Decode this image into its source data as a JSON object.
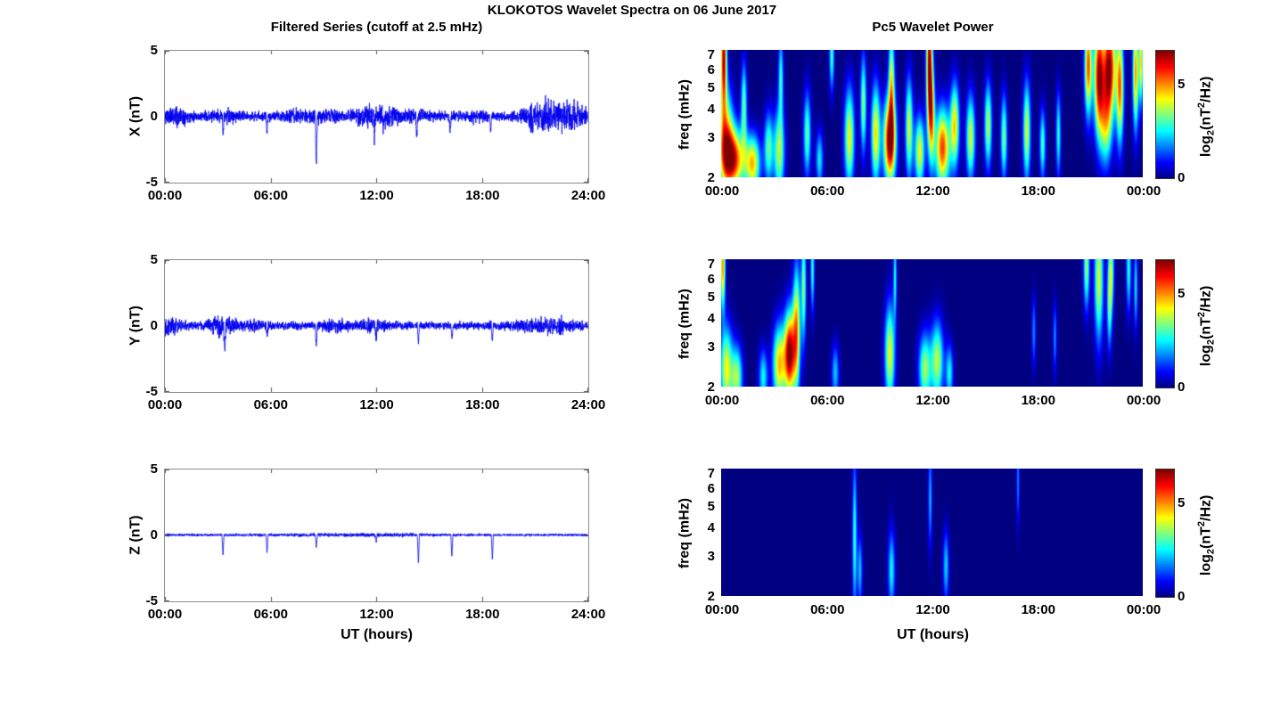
{
  "figure": {
    "title": "KLOKOTOS Wavelet Spectra on 06 June 2017",
    "left_subtitle": "Filtered Series (cutoff at 2.5 mHz)",
    "right_subtitle": "Pc5 Wavelet Power",
    "xlabel": "UT (hours)",
    "colorbar_label": {
      "base": "log",
      "sub": "2",
      "open": "(nT",
      "sup": "2",
      "close": "/Hz)"
    }
  },
  "chart_data": [
    {
      "id": "x-filtered",
      "type": "line",
      "panel": "left",
      "row": 0,
      "ylabel": "X (nT)",
      "ylim": [
        -5,
        5
      ],
      "yticks": [
        5,
        0,
        -5
      ],
      "xlim_hours": [
        0,
        24
      ],
      "xtick_labels": [
        "00:00",
        "06:00",
        "12:00",
        "18:00",
        "24:00"
      ],
      "line_color": "#0000ee",
      "seed": 11,
      "show_xlabel": false,
      "noise": {
        "base": 0.35,
        "bursts": [
          {
            "t": 0.5,
            "w": 0.5,
            "amp": 0.5
          },
          {
            "t": 3.5,
            "w": 0.5,
            "amp": 0.2
          },
          {
            "t": 7.5,
            "w": 0.5,
            "amp": 0.2
          },
          {
            "t": 9.0,
            "w": 0.6,
            "amp": 0.25
          },
          {
            "t": 11.6,
            "w": 0.8,
            "amp": 0.45
          },
          {
            "t": 12.7,
            "w": 0.5,
            "amp": 0.3
          },
          {
            "t": 14.5,
            "w": 0.6,
            "amp": 0.2
          },
          {
            "t": 17.5,
            "w": 0.5,
            "amp": 0.15
          },
          {
            "t": 21.1,
            "w": 0.5,
            "amp": 0.55
          },
          {
            "t": 22.3,
            "w": 0.9,
            "amp": 0.75
          },
          {
            "t": 23.3,
            "w": 0.4,
            "amp": 0.4
          }
        ]
      },
      "spikes": [
        {
          "t": 3.3,
          "v": -1.3
        },
        {
          "t": 5.8,
          "v": -1.4
        },
        {
          "t": 8.6,
          "v": -3.7
        },
        {
          "t": 11.9,
          "v": -1.7
        },
        {
          "t": 12.4,
          "v": -0.9
        },
        {
          "t": 14.3,
          "v": -1.5
        },
        {
          "t": 16.2,
          "v": -1.3
        },
        {
          "t": 18.5,
          "v": -1.2
        },
        {
          "t": 20.9,
          "v": -0.9
        }
      ]
    },
    {
      "id": "x-wavelet",
      "type": "heatmap",
      "panel": "right",
      "row": 0,
      "ylabel": "freq (mHz)",
      "f_range_mHz": [
        2,
        7.3
      ],
      "yticks": [
        7,
        6,
        5,
        4,
        3,
        2
      ],
      "xtick_labels": [
        "00:00",
        "06:00",
        "12:00",
        "18:00",
        "00:00"
      ],
      "colormap": "jet",
      "cmax": 6.8,
      "colorbar_ticks": [
        0,
        5
      ],
      "show_xlabel": false,
      "blob_format": [
        "t_hours",
        "f_mHz",
        "sigma_t_hours",
        "sigma_logf",
        "amplitude"
      ],
      "blobs": [
        [
          0.15,
          6.8,
          0.12,
          0.35,
          6.5
        ],
        [
          0.25,
          3.0,
          0.3,
          0.35,
          4.5
        ],
        [
          0.7,
          2.4,
          0.45,
          0.22,
          5.8
        ],
        [
          1.8,
          2.3,
          0.3,
          0.2,
          4.5
        ],
        [
          1.3,
          4.2,
          0.12,
          0.3,
          3.2
        ],
        [
          2.7,
          2.7,
          0.18,
          0.25,
          3.2
        ],
        [
          3.3,
          2.6,
          0.22,
          0.3,
          3.8
        ],
        [
          3.4,
          5.5,
          0.1,
          0.3,
          2.8
        ],
        [
          4.9,
          3.1,
          0.15,
          0.3,
          3.2
        ],
        [
          5.6,
          2.4,
          0.15,
          0.2,
          2.5
        ],
        [
          6.3,
          6.9,
          0.1,
          0.25,
          3.0
        ],
        [
          7.3,
          3.0,
          0.2,
          0.35,
          4.2
        ],
        [
          8.1,
          4.2,
          0.12,
          0.35,
          3.5
        ],
        [
          8.8,
          3.1,
          0.18,
          0.35,
          4.5
        ],
        [
          9.6,
          2.9,
          0.25,
          0.3,
          6.8
        ],
        [
          9.7,
          5.2,
          0.12,
          0.4,
          4.0
        ],
        [
          10.7,
          3.3,
          0.15,
          0.35,
          4.0
        ],
        [
          11.3,
          2.6,
          0.2,
          0.25,
          4.2
        ],
        [
          11.85,
          6.3,
          0.12,
          0.5,
          6.6
        ],
        [
          12.0,
          3.8,
          0.12,
          0.35,
          4.0
        ],
        [
          12.6,
          2.7,
          0.3,
          0.28,
          5.6
        ],
        [
          13.3,
          3.4,
          0.18,
          0.3,
          4.4
        ],
        [
          14.2,
          3.0,
          0.18,
          0.3,
          4.0
        ],
        [
          15.2,
          3.4,
          0.15,
          0.3,
          3.8
        ],
        [
          16.1,
          3.0,
          0.13,
          0.3,
          3.4
        ],
        [
          17.4,
          3.2,
          0.15,
          0.35,
          4.0
        ],
        [
          18.3,
          2.8,
          0.12,
          0.25,
          3.0
        ],
        [
          19.2,
          3.1,
          0.1,
          0.3,
          2.8
        ],
        [
          20.9,
          6.2,
          0.15,
          0.35,
          5.5
        ],
        [
          21.5,
          5.6,
          0.2,
          0.4,
          6.4
        ],
        [
          22.1,
          6.2,
          0.25,
          0.35,
          6.7
        ],
        [
          22.7,
          5.0,
          0.15,
          0.4,
          5.2
        ],
        [
          21.9,
          3.4,
          0.25,
          0.3,
          3.4
        ],
        [
          23.6,
          5.8,
          0.12,
          0.4,
          5.0
        ],
        [
          23.9,
          6.5,
          0.08,
          0.3,
          4.5
        ]
      ]
    },
    {
      "id": "y-filtered",
      "type": "line",
      "panel": "left",
      "row": 1,
      "ylabel": "Y (nT)",
      "ylim": [
        -5,
        5
      ],
      "yticks": [
        5,
        0,
        -5
      ],
      "xlim_hours": [
        0,
        24
      ],
      "xtick_labels": [
        "00:00",
        "06:00",
        "12:00",
        "18:00",
        "24:00"
      ],
      "line_color": "#0000ee",
      "seed": 22,
      "show_xlabel": false,
      "noise": {
        "base": 0.3,
        "bursts": [
          {
            "t": 0.3,
            "w": 0.4,
            "amp": 0.45
          },
          {
            "t": 3.3,
            "w": 0.5,
            "amp": 0.5
          },
          {
            "t": 5.0,
            "w": 0.4,
            "amp": 0.15
          },
          {
            "t": 9.6,
            "w": 0.5,
            "amp": 0.25
          },
          {
            "t": 11.8,
            "w": 0.6,
            "amp": 0.2
          },
          {
            "t": 21.3,
            "w": 0.9,
            "amp": 0.3
          },
          {
            "t": 22.5,
            "w": 0.5,
            "amp": 0.25
          }
        ]
      },
      "spikes": [
        {
          "t": 3.4,
          "v": -2.3
        },
        {
          "t": 5.8,
          "v": -0.8
        },
        {
          "t": 8.6,
          "v": -1.6
        },
        {
          "t": 12.0,
          "v": -1.1
        },
        {
          "t": 14.4,
          "v": -1.3
        },
        {
          "t": 16.3,
          "v": -1.2
        },
        {
          "t": 18.6,
          "v": -1.3
        }
      ]
    },
    {
      "id": "y-wavelet",
      "type": "heatmap",
      "panel": "right",
      "row": 1,
      "ylabel": "freq (mHz)",
      "f_range_mHz": [
        2,
        7.3
      ],
      "yticks": [
        7,
        6,
        5,
        4,
        3,
        2
      ],
      "xtick_labels": [
        "00:00",
        "06:00",
        "12:00",
        "18:00",
        "00:00"
      ],
      "colormap": "jet",
      "cmax": 6.8,
      "colorbar_ticks": [
        0,
        5
      ],
      "show_xlabel": false,
      "blob_format": [
        "t_hours",
        "f_mHz",
        "sigma_t_hours",
        "sigma_logf",
        "amplitude"
      ],
      "blobs": [
        [
          0.1,
          6.8,
          0.1,
          0.3,
          5.0
        ],
        [
          0.3,
          2.4,
          0.25,
          0.3,
          4.2
        ],
        [
          0.9,
          2.2,
          0.22,
          0.22,
          3.6
        ],
        [
          2.4,
          2.2,
          0.18,
          0.2,
          2.6
        ],
        [
          3.3,
          2.5,
          0.25,
          0.28,
          4.6
        ],
        [
          3.9,
          2.8,
          0.22,
          0.3,
          6.8
        ],
        [
          4.3,
          3.6,
          0.15,
          0.45,
          4.6
        ],
        [
          4.7,
          5.5,
          0.1,
          0.4,
          3.4
        ],
        [
          5.2,
          6.6,
          0.08,
          0.3,
          2.8
        ],
        [
          6.5,
          2.3,
          0.15,
          0.2,
          2.2
        ],
        [
          9.6,
          2.8,
          0.2,
          0.35,
          4.2
        ],
        [
          9.9,
          6.1,
          0.07,
          0.3,
          2.6
        ],
        [
          11.6,
          2.4,
          0.25,
          0.25,
          3.6
        ],
        [
          12.3,
          2.6,
          0.25,
          0.28,
          3.8
        ],
        [
          13.0,
          2.3,
          0.15,
          0.2,
          2.6
        ],
        [
          17.8,
          3.5,
          0.08,
          0.25,
          1.8
        ],
        [
          19.0,
          3.3,
          0.08,
          0.25,
          1.8
        ],
        [
          20.8,
          6.8,
          0.12,
          0.3,
          3.6
        ],
        [
          21.5,
          6.0,
          0.18,
          0.45,
          4.0
        ],
        [
          22.2,
          6.6,
          0.12,
          0.3,
          3.4
        ],
        [
          22.1,
          4.4,
          0.1,
          0.3,
          2.6
        ],
        [
          23.2,
          6.6,
          0.1,
          0.3,
          2.8
        ],
        [
          23.6,
          5.5,
          0.08,
          0.3,
          2.4
        ]
      ]
    },
    {
      "id": "z-filtered",
      "type": "line",
      "panel": "left",
      "row": 2,
      "ylabel": "Z (nT)",
      "ylim": [
        -5,
        5
      ],
      "yticks": [
        5,
        0,
        -5
      ],
      "xlim_hours": [
        0,
        24
      ],
      "xtick_labels": [
        "00:00",
        "06:00",
        "12:00",
        "18:00",
        "24:00"
      ],
      "line_color": "#0000ee",
      "seed": 33,
      "show_xlabel": true,
      "noise": {
        "base": 0.09,
        "bursts": [
          {
            "t": 9.0,
            "w": 3.0,
            "amp": 0.03
          },
          {
            "t": 13.0,
            "w": 2.0,
            "amp": 0.04
          }
        ]
      },
      "spikes": [
        {
          "t": 3.3,
          "v": -1.6
        },
        {
          "t": 5.8,
          "v": -1.4
        },
        {
          "t": 8.6,
          "v": -1.0
        },
        {
          "t": 12.0,
          "v": -0.6
        },
        {
          "t": 14.4,
          "v": -2.1
        },
        {
          "t": 16.3,
          "v": -1.7
        },
        {
          "t": 18.6,
          "v": -1.9
        }
      ]
    },
    {
      "id": "z-wavelet",
      "type": "heatmap",
      "panel": "right",
      "row": 2,
      "ylabel": "freq (mHz)",
      "f_range_mHz": [
        2,
        7.3
      ],
      "yticks": [
        7,
        6,
        5,
        4,
        3,
        2
      ],
      "xtick_labels": [
        "00:00",
        "06:00",
        "12:00",
        "18:00",
        "00:00"
      ],
      "colormap": "jet",
      "cmax": 6.8,
      "colorbar_ticks": [
        0,
        5
      ],
      "show_xlabel": true,
      "blob_format": [
        "t_hours",
        "f_mHz",
        "sigma_t_hours",
        "sigma_logf",
        "amplitude"
      ],
      "blobs": [
        [
          7.6,
          3.6,
          0.09,
          0.55,
          2.9
        ],
        [
          7.9,
          2.6,
          0.1,
          0.25,
          2.2
        ],
        [
          9.7,
          2.6,
          0.14,
          0.28,
          2.6
        ],
        [
          11.9,
          5.4,
          0.08,
          0.35,
          2.1
        ],
        [
          12.8,
          2.7,
          0.12,
          0.25,
          2.3
        ],
        [
          16.9,
          6.4,
          0.06,
          0.3,
          1.8
        ]
      ]
    }
  ]
}
